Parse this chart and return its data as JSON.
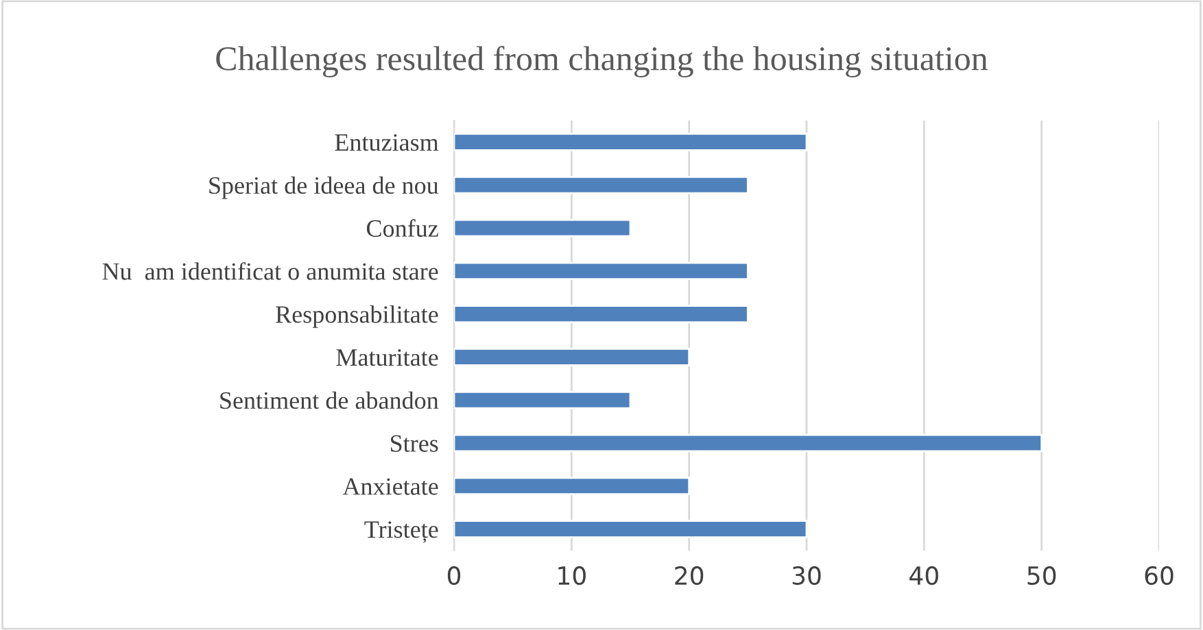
{
  "chart_data": {
    "type": "bar",
    "orientation": "horizontal",
    "title": "Challenges resulted from changing the housing situation",
    "categories": [
      "Entuziasm",
      "Speriat de ideea de nou",
      "Confuz",
      "Nu  am identificat o anumita stare",
      "Responsabilitate",
      "Maturitate",
      "Sentiment de abandon",
      "Stres",
      "Anxietate",
      "Tristețe"
    ],
    "values": [
      30,
      25,
      15,
      25,
      25,
      20,
      15,
      50,
      20,
      30
    ],
    "color": "#4f81bd",
    "xlim": [
      0,
      60
    ],
    "xticks": [
      0,
      10,
      20,
      30,
      40,
      50,
      60
    ],
    "grid": "x",
    "legend": false
  }
}
